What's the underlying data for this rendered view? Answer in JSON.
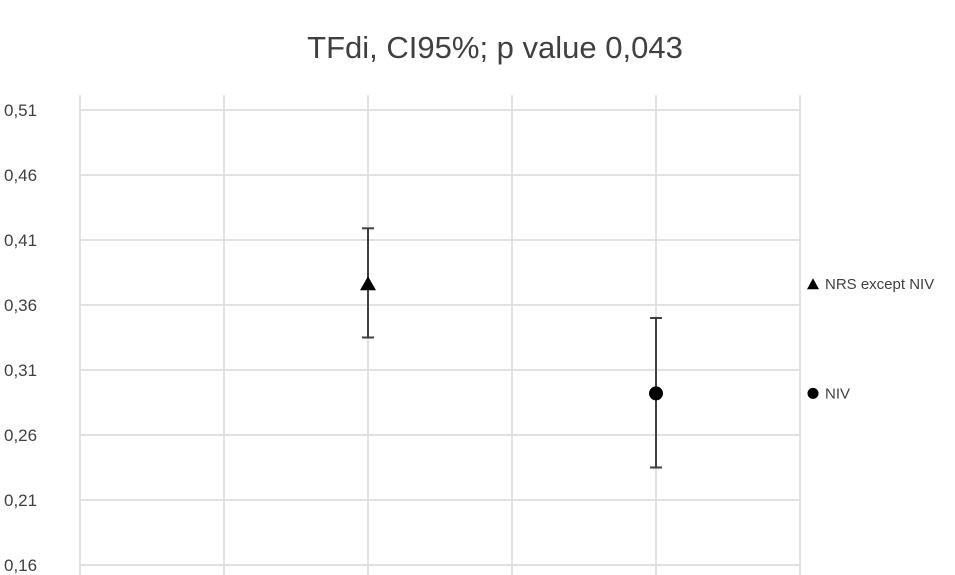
{
  "chart_data": {
    "type": "scatter",
    "title": "TFdi, CI95%; p value 0,043",
    "xlabel": "",
    "ylabel": "",
    "ylim": [
      0.16,
      0.51
    ],
    "yticks": [
      "0,16",
      "0,21",
      "0,26",
      "0,31",
      "0,36",
      "0,41",
      "0,46",
      "0,51"
    ],
    "grid": true,
    "legend_position": "right",
    "series": [
      {
        "name": "NRS except NIV",
        "marker": "triangle",
        "x": 2,
        "y": 0.376,
        "ci_low": 0.335,
        "ci_high": 0.419,
        "color": "#000000"
      },
      {
        "name": "NIV",
        "marker": "circle",
        "x": 4,
        "y": 0.292,
        "ci_low": 0.235,
        "ci_high": 0.35,
        "color": "#000000"
      }
    ],
    "x_slots": 5
  }
}
